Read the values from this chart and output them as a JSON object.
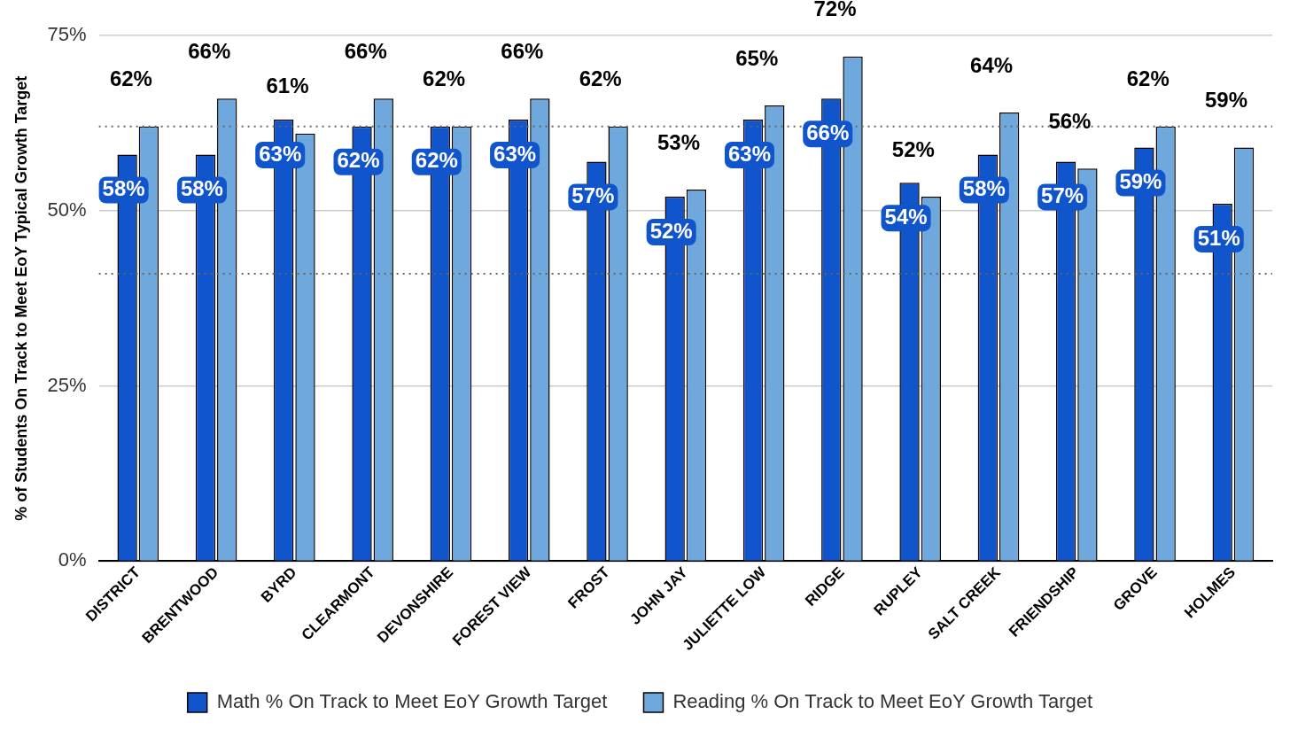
{
  "chart_data": {
    "type": "bar",
    "ylabel": "% of Students On Track to Meet EoY Typical Growth Target",
    "categories": [
      "DISTRICT",
      "BRENTWOOD",
      "BYRD",
      "CLEARMONT",
      "DEVONSHIRE",
      "FOREST VIEW",
      "FROST",
      "JOHN JAY",
      "JULIETTE LOW",
      "RIDGE",
      "RUPLEY",
      "SALT CREEK",
      "FRIENDSHIP",
      "GROVE",
      "HOLMES"
    ],
    "series": [
      {
        "name": "Math % On Track to Meet EoY Growth Target",
        "color": "#1155cc",
        "values": [
          58,
          58,
          63,
          62,
          62,
          63,
          57,
          52,
          63,
          66,
          54,
          58,
          57,
          59,
          51
        ],
        "value_labels": [
          "58%",
          "58%",
          "63%",
          "62%",
          "62%",
          "63%",
          "57%",
          "52%",
          "63%",
          "66%",
          "54%",
          "58%",
          "57%",
          "59%",
          "51%"
        ]
      },
      {
        "name": "Reading % On Track to Meet EoY Growth Target",
        "color": "#6fa8dc",
        "values": [
          62,
          66,
          61,
          66,
          62,
          66,
          62,
          53,
          65,
          72,
          52,
          64,
          56,
          62,
          59
        ],
        "value_labels": [
          "62%",
          "66%",
          "61%",
          "66%",
          "62%",
          "66%",
          "62%",
          "53%",
          "65%",
          "72%",
          "52%",
          "64%",
          "56%",
          "62%",
          "59%"
        ]
      }
    ],
    "ylim": [
      0,
      75
    ],
    "yticks": [
      {
        "value": 0,
        "label": "0%"
      },
      {
        "value": 25,
        "label": "25%"
      },
      {
        "value": 50,
        "label": "50%"
      },
      {
        "value": 75,
        "label": "75%"
      }
    ],
    "grid": "y",
    "legend": "bottom",
    "ref_lines": [
      {
        "axis": "y",
        "value": 62,
        "color": "#666666",
        "line_style": "dotted"
      },
      {
        "axis": "y",
        "value": 41,
        "color": "#666666",
        "line_style": "dotted"
      }
    ]
  }
}
